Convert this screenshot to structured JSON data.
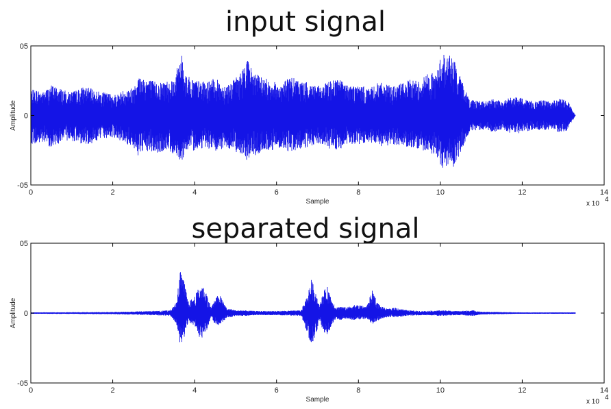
{
  "chart_data": [
    {
      "type": "line",
      "title": "input signal",
      "xlabel": "Sample",
      "ylabel": "Amplitude",
      "x_multiplier_label": "x 10",
      "x_multiplier_exponent": "4",
      "xlim": [
        0,
        140000
      ],
      "ylim": [
        -0.5,
        0.5
      ],
      "x_ticks": [
        0,
        2,
        4,
        6,
        8,
        10,
        12,
        14
      ],
      "y_ticks": [
        {
          "value": 0.5,
          "label": "05"
        },
        {
          "value": 0,
          "label": "0"
        },
        {
          "value": -0.5,
          "label": "-05"
        }
      ],
      "line_color": "#1414e6",
      "series": [
        {
          "sample_count": 133000,
          "envelope": {
            "x": [
              0,
              1000,
              3000,
              5000,
              7000,
              9000,
              11000,
              13000,
              15000,
              17000,
              19000,
              21000,
              23000,
              25000,
              25500,
              27000,
              29000,
              31000,
              33000,
              35000,
              36500,
              37000,
              37500,
              39000,
              41000,
              43000,
              45000,
              47000,
              49000,
              51000,
              52000,
              52500,
              53500,
              55000,
              57000,
              59000,
              61000,
              63000,
              65000,
              67000,
              69000,
              71000,
              73000,
              75000,
              77000,
              79000,
              81000,
              83000,
              85000,
              87000,
              89000,
              91000,
              93000,
              95000,
              97000,
              99000,
              100500,
              101500,
              102500,
              103500,
              104500,
              105500,
              107000,
              109000,
              111000,
              113000,
              115000,
              117000,
              119000,
              121000,
              123000,
              125000,
              127000,
              129000,
              131000,
              133000
            ],
            "upper": [
              0.18,
              0.19,
              0.17,
              0.22,
              0.2,
              0.17,
              0.18,
              0.21,
              0.19,
              0.17,
              0.16,
              0.15,
              0.19,
              0.2,
              0.27,
              0.29,
              0.26,
              0.24,
              0.25,
              0.27,
              0.42,
              0.44,
              0.32,
              0.27,
              0.25,
              0.24,
              0.27,
              0.22,
              0.24,
              0.3,
              0.35,
              0.45,
              0.36,
              0.3,
              0.27,
              0.25,
              0.22,
              0.28,
              0.26,
              0.24,
              0.23,
              0.2,
              0.26,
              0.27,
              0.23,
              0.22,
              0.21,
              0.2,
              0.24,
              0.22,
              0.21,
              0.24,
              0.26,
              0.25,
              0.31,
              0.3,
              0.47,
              0.42,
              0.45,
              0.39,
              0.3,
              0.24,
              0.12,
              0.11,
              0.1,
              0.12,
              0.1,
              0.13,
              0.13,
              0.12,
              0.1,
              0.11,
              0.1,
              0.12,
              0.11,
              0.0
            ],
            "lower": [
              -0.2,
              -0.21,
              -0.2,
              -0.23,
              -0.2,
              -0.18,
              -0.19,
              -0.21,
              -0.2,
              -0.17,
              -0.16,
              -0.16,
              -0.21,
              -0.22,
              -0.3,
              -0.28,
              -0.26,
              -0.28,
              -0.25,
              -0.28,
              -0.32,
              -0.34,
              -0.25,
              -0.26,
              -0.24,
              -0.23,
              -0.27,
              -0.24,
              -0.24,
              -0.28,
              -0.27,
              -0.33,
              -0.3,
              -0.29,
              -0.26,
              -0.25,
              -0.23,
              -0.26,
              -0.25,
              -0.24,
              -0.22,
              -0.21,
              -0.24,
              -0.25,
              -0.22,
              -0.21,
              -0.21,
              -0.2,
              -0.23,
              -0.22,
              -0.21,
              -0.22,
              -0.23,
              -0.25,
              -0.27,
              -0.28,
              -0.4,
              -0.36,
              -0.34,
              -0.4,
              -0.3,
              -0.24,
              -0.12,
              -0.11,
              -0.1,
              -0.12,
              -0.1,
              -0.13,
              -0.13,
              -0.12,
              -0.1,
              -0.11,
              -0.1,
              -0.12,
              -0.11,
              0.0
            ]
          }
        }
      ]
    },
    {
      "type": "line",
      "title": "separated signal",
      "xlabel": "Sample",
      "ylabel": "Amplitude",
      "x_multiplier_label": "x 10",
      "x_multiplier_exponent": "4",
      "xlim": [
        0,
        140000
      ],
      "ylim": [
        -0.5,
        0.5
      ],
      "x_ticks": [
        0,
        2,
        4,
        6,
        8,
        10,
        12,
        14
      ],
      "y_ticks": [
        {
          "value": 0.5,
          "label": "05"
        },
        {
          "value": 0,
          "label": "0"
        },
        {
          "value": -0.5,
          "label": "-05"
        }
      ],
      "line_color": "#1414e6",
      "series": [
        {
          "sample_count": 133000,
          "envelope": {
            "x": [
              0,
              20000,
              26000,
              34000,
              35500,
              36500,
              37500,
              38500,
              40000,
              41000,
              42000,
              43000,
              44000,
              45000,
              46000,
              47000,
              48000,
              49000,
              50000,
              52000,
              55000,
              60000,
              66000,
              67500,
              68500,
              69500,
              70500,
              71500,
              72500,
              73500,
              74500,
              75500,
              77000,
              79000,
              82000,
              83500,
              84500,
              85500,
              87000,
              89000,
              92000,
              96000,
              100000,
              104000,
              108000,
              110000,
              120000,
              133000
            ],
            "upper": [
              0.005,
              0.008,
              0.012,
              0.02,
              0.08,
              0.3,
              0.22,
              0.08,
              0.12,
              0.18,
              0.2,
              0.14,
              0.04,
              0.1,
              0.14,
              0.08,
              0.03,
              0.03,
              0.02,
              0.02,
              0.015,
              0.015,
              0.02,
              0.12,
              0.24,
              0.16,
              0.05,
              0.16,
              0.19,
              0.1,
              0.04,
              0.05,
              0.04,
              0.06,
              0.05,
              0.17,
              0.08,
              0.05,
              0.03,
              0.04,
              0.02,
              0.015,
              0.02,
              0.015,
              0.02,
              0.01,
              0.005,
              0.005
            ],
            "lower": [
              -0.005,
              -0.008,
              -0.012,
              -0.02,
              -0.07,
              -0.23,
              -0.17,
              -0.06,
              -0.1,
              -0.17,
              -0.18,
              -0.12,
              -0.03,
              -0.08,
              -0.09,
              -0.06,
              -0.03,
              -0.03,
              -0.02,
              -0.02,
              -0.015,
              -0.015,
              -0.02,
              -0.14,
              -0.27,
              -0.17,
              -0.05,
              -0.14,
              -0.16,
              -0.08,
              -0.04,
              -0.05,
              -0.04,
              -0.05,
              -0.04,
              -0.08,
              -0.06,
              -0.04,
              -0.03,
              -0.03,
              -0.02,
              -0.015,
              -0.02,
              -0.015,
              -0.02,
              -0.01,
              -0.005,
              -0.005
            ]
          }
        }
      ]
    }
  ]
}
